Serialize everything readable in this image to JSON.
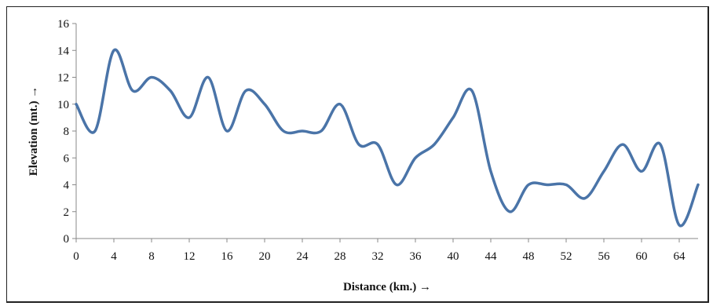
{
  "chart_data": {
    "type": "line",
    "title": "",
    "xlabel": "Distance (km.) →",
    "ylabel": "Elevation (mt.) →",
    "xlim": [
      0,
      66
    ],
    "ylim": [
      0,
      16
    ],
    "xticks": [
      0,
      4,
      8,
      12,
      16,
      20,
      24,
      28,
      32,
      36,
      40,
      44,
      48,
      52,
      56,
      60,
      64
    ],
    "yticks": [
      0,
      2,
      4,
      6,
      8,
      10,
      12,
      14,
      16
    ],
    "grid": false,
    "legend": "none",
    "line_color": "#4a74a8",
    "series": [
      {
        "x": [
          0,
          2,
          4,
          6,
          8,
          10,
          12,
          14,
          16,
          18,
          20,
          22,
          24,
          26,
          28,
          30,
          32,
          34,
          36,
          38,
          40,
          42,
          44,
          46,
          48,
          50,
          52,
          54,
          56,
          58,
          60,
          62,
          64,
          66
        ],
        "y": [
          10,
          8,
          14,
          11,
          12,
          11,
          9,
          12,
          8,
          11,
          10,
          8,
          8,
          8,
          10,
          7,
          7,
          4,
          6,
          7,
          9,
          11,
          5,
          2,
          4,
          4,
          4,
          3,
          5,
          7,
          5,
          7,
          1,
          4
        ]
      }
    ]
  }
}
